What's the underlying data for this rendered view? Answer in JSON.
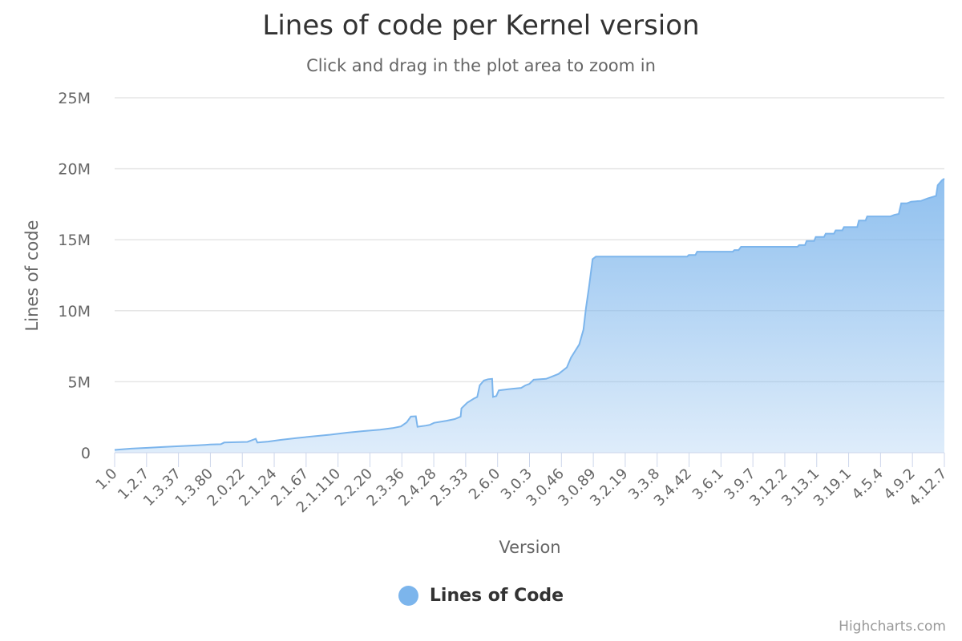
{
  "header": {
    "title": "Lines of code per Kernel version",
    "subtitle": "Click and drag in the plot area to zoom in"
  },
  "legend": {
    "label": "Lines of Code",
    "color": "#7cb5ec"
  },
  "credits": "Highcharts.com",
  "chart_data": {
    "type": "area",
    "title": "Lines of code per Kernel version",
    "subtitle": "Click and drag in the plot area to zoom in",
    "xlabel": "Version",
    "ylabel": "Lines of code",
    "ylim": [
      0,
      25000000
    ],
    "yticks": [
      "0",
      "5M",
      "10M",
      "15M",
      "20M",
      "25M"
    ],
    "ytick_values": [
      0,
      5000000,
      10000000,
      15000000,
      20000000,
      25000000
    ],
    "xticks": [
      "1.0",
      "1.2.7",
      "1.3.37",
      "1.3.80",
      "2.0.22",
      "2.1.24",
      "2.1.67",
      "2.1.110",
      "2.2.20",
      "2.3.36",
      "2.4.28",
      "2.5.33",
      "2.6.0",
      "3.0.3",
      "3.0.46",
      "3.0.89",
      "3.2.19",
      "3.3.8",
      "3.4.42",
      "3.6.1",
      "3.9.7",
      "3.12.2",
      "3.13.1",
      "3.19.1",
      "4.5.4",
      "4.9.2",
      "4.12.7"
    ],
    "grid": true,
    "legend_position": "bottom-center",
    "series": [
      {
        "name": "Lines of Code",
        "color": "#7cb5ec",
        "points_note": "[x position fraction 0..1 across version axis, value in millions of lines]",
        "points": [
          [
            0.0,
            0.17
          ],
          [
            0.02,
            0.25
          ],
          [
            0.04,
            0.3
          ],
          [
            0.06,
            0.35
          ],
          [
            0.08,
            0.4
          ],
          [
            0.1,
            0.45
          ],
          [
            0.115,
            0.5
          ],
          [
            0.128,
            0.52
          ],
          [
            0.132,
            0.62
          ],
          [
            0.15,
            0.65
          ],
          [
            0.16,
            0.66
          ],
          [
            0.165,
            0.75
          ],
          [
            0.17,
            0.85
          ],
          [
            0.172,
            0.62
          ],
          [
            0.185,
            0.68
          ],
          [
            0.2,
            0.78
          ],
          [
            0.22,
            0.9
          ],
          [
            0.24,
            1.0
          ],
          [
            0.26,
            1.1
          ],
          [
            0.28,
            1.22
          ],
          [
            0.3,
            1.32
          ],
          [
            0.32,
            1.4
          ],
          [
            0.335,
            1.5
          ],
          [
            0.345,
            1.6
          ],
          [
            0.352,
            1.85
          ],
          [
            0.357,
            2.2
          ],
          [
            0.363,
            2.22
          ],
          [
            0.365,
            1.58
          ],
          [
            0.375,
            1.65
          ],
          [
            0.38,
            1.7
          ],
          [
            0.385,
            1.82
          ],
          [
            0.4,
            1.95
          ],
          [
            0.41,
            2.05
          ],
          [
            0.417,
            2.2
          ],
          [
            0.418,
            2.7
          ],
          [
            0.425,
            3.05
          ],
          [
            0.433,
            3.3
          ],
          [
            0.437,
            3.4
          ],
          [
            0.44,
            4.1
          ],
          [
            0.445,
            4.4
          ],
          [
            0.45,
            4.48
          ],
          [
            0.455,
            4.5
          ],
          [
            0.456,
            3.4
          ],
          [
            0.46,
            3.45
          ],
          [
            0.463,
            3.8
          ],
          [
            0.48,
            3.9
          ],
          [
            0.49,
            3.95
          ],
          [
            0.495,
            4.1
          ],
          [
            0.5,
            4.2
          ],
          [
            0.505,
            4.45
          ],
          [
            0.52,
            4.5
          ],
          [
            0.525,
            4.6
          ],
          [
            0.535,
            4.8
          ],
          [
            0.545,
            5.2
          ],
          [
            0.55,
            5.8
          ],
          [
            0.56,
            6.6
          ],
          [
            0.565,
            7.5
          ],
          [
            0.568,
            8.8
          ],
          [
            0.572,
            10.2
          ],
          [
            0.576,
            11.8
          ],
          [
            0.58,
            11.95
          ],
          [
            0.62,
            11.95
          ],
          [
            0.66,
            11.95
          ],
          [
            0.69,
            11.95
          ],
          [
            0.692,
            12.05
          ],
          [
            0.7,
            12.05
          ],
          [
            0.702,
            12.25
          ],
          [
            0.72,
            12.25
          ],
          [
            0.74,
            12.25
          ],
          [
            0.745,
            12.25
          ],
          [
            0.747,
            12.35
          ],
          [
            0.752,
            12.35
          ],
          [
            0.755,
            12.55
          ],
          [
            0.775,
            12.55
          ],
          [
            0.8,
            12.55
          ],
          [
            0.823,
            12.55
          ],
          [
            0.825,
            12.65
          ],
          [
            0.832,
            12.65
          ],
          [
            0.834,
            12.9
          ],
          [
            0.843,
            12.9
          ],
          [
            0.845,
            13.15
          ],
          [
            0.855,
            13.15
          ],
          [
            0.857,
            13.35
          ],
          [
            0.867,
            13.35
          ],
          [
            0.869,
            13.55
          ],
          [
            0.877,
            13.55
          ],
          [
            0.879,
            13.75
          ],
          [
            0.895,
            13.75
          ],
          [
            0.897,
            14.15
          ],
          [
            0.905,
            14.15
          ],
          [
            0.907,
            14.4
          ],
          [
            0.935,
            14.4
          ],
          [
            0.94,
            14.5
          ],
          [
            0.945,
            14.55
          ],
          [
            0.948,
            15.2
          ],
          [
            0.955,
            15.2
          ],
          [
            0.96,
            15.3
          ],
          [
            0.972,
            15.35
          ],
          [
            0.98,
            15.5
          ],
          [
            0.99,
            15.65
          ],
          [
            0.992,
            16.3
          ],
          [
            0.997,
            16.6
          ],
          [
            1.0,
            16.7
          ]
        ]
      }
    ]
  }
}
